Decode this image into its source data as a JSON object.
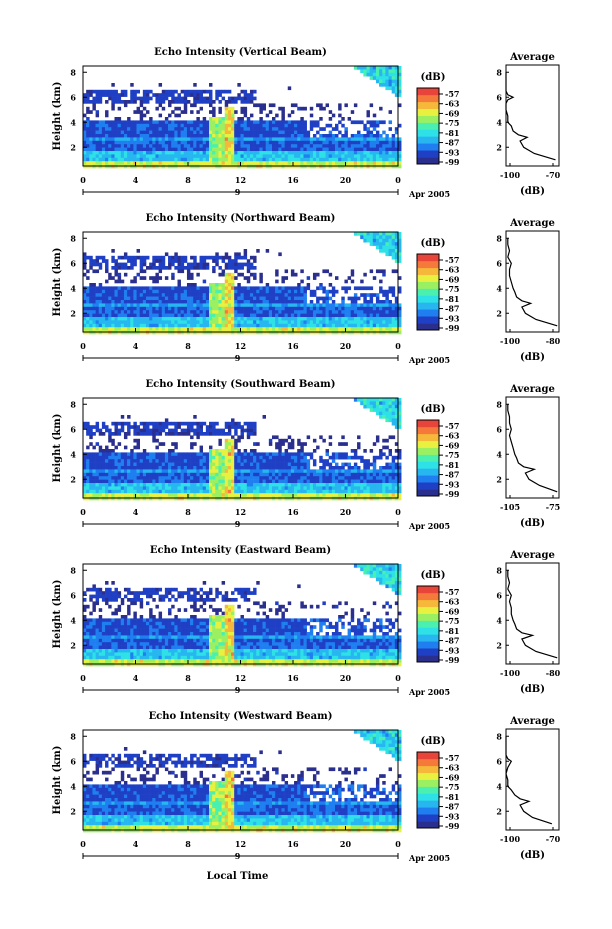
{
  "figure": {
    "x_axis_title": "Local Time",
    "date_label": "Apr 2005",
    "colorbar_unit": "(dB)",
    "average_title": "Average",
    "average_xlabel": "(dB)"
  },
  "colors": {
    "colormap": [
      "#2a2f8e",
      "#1f3fc4",
      "#1f7ff0",
      "#27b6f0",
      "#2ee1e6",
      "#49f0b0",
      "#9af061",
      "#e8f040",
      "#f5b83a",
      "#f5793a",
      "#e8453a"
    ],
    "axis": "#000000",
    "background": "#ffffff"
  },
  "chart_data": [
    {
      "type": "heatmap",
      "title": "Echo Intensity (Vertical Beam)",
      "xlabel": "Local Time",
      "ylabel": "Height (km)",
      "x_tick_labels": [
        "0",
        "4",
        "8",
        "12",
        "16",
        "20",
        "0"
      ],
      "x_day_label": "9",
      "x_range_hours": [
        0,
        24
      ],
      "y_tick_labels": [
        "2",
        "4",
        "6",
        "8"
      ],
      "ylim_km": [
        0.5,
        8.5
      ],
      "colorbar": {
        "unit": "(dB)",
        "tick_labels": [
          "-57",
          "-63",
          "-69",
          "-75",
          "-81",
          "-87",
          "-93",
          "-99"
        ],
        "range": [
          -99,
          -57
        ]
      },
      "average_profile": {
        "title": "Average",
        "xlabel": "(dB)",
        "xlim": [
          -100,
          -70
        ],
        "x_tick_labels": [
          "-100",
          "-70"
        ],
        "y_tick_labels": [
          "2",
          "4",
          "6",
          "8"
        ],
        "height_km": [
          1.0,
          1.5,
          2.0,
          2.5,
          2.8,
          3.0,
          3.3,
          3.7,
          4.0,
          4.5,
          5.0,
          5.5,
          5.8,
          6.0,
          6.2,
          6.5,
          7.0,
          7.5,
          8.0
        ],
        "value_db": [
          -72,
          -84,
          -90,
          -92,
          -88,
          -93,
          -96,
          -97,
          -99,
          -99,
          -100,
          -100,
          -99,
          -96,
          -99,
          -100,
          -100,
          -100,
          -100
        ]
      }
    },
    {
      "type": "heatmap",
      "title": "Echo Intensity (Northward Beam)",
      "xlabel": "Local Time",
      "ylabel": "Height (km)",
      "x_tick_labels": [
        "0",
        "4",
        "8",
        "12",
        "16",
        "20",
        "0"
      ],
      "x_day_label": "9",
      "x_range_hours": [
        0,
        24
      ],
      "y_tick_labels": [
        "2",
        "4",
        "6",
        "8"
      ],
      "ylim_km": [
        0.5,
        8.5
      ],
      "colorbar": {
        "unit": "(dB)",
        "tick_labels": [
          "-57",
          "-63",
          "-69",
          "-75",
          "-81",
          "-87",
          "-93",
          "-99"
        ],
        "range": [
          -99,
          -57
        ]
      },
      "average_profile": {
        "title": "Average",
        "xlabel": "(dB)",
        "xlim": [
          -105,
          -75
        ],
        "x_tick_labels": [
          "-100",
          "-80"
        ],
        "y_tick_labels": [
          "2",
          "4",
          "6",
          "8"
        ],
        "height_km": [
          1.0,
          1.5,
          2.0,
          2.5,
          2.8,
          3.0,
          3.3,
          3.7,
          4.0,
          4.5,
          5.0,
          5.5,
          6.0,
          6.5,
          7.0,
          7.5,
          8.0
        ],
        "value_db": [
          -76,
          -88,
          -94,
          -96,
          -91,
          -96,
          -99,
          -100,
          -101,
          -102,
          -103,
          -103,
          -102,
          -104,
          -103,
          -104,
          -104
        ]
      }
    },
    {
      "type": "heatmap",
      "title": "Echo Intensity (Southward Beam)",
      "xlabel": "Local Time",
      "ylabel": "Height (km)",
      "x_tick_labels": [
        "0",
        "4",
        "8",
        "12",
        "16",
        "20",
        "0"
      ],
      "x_day_label": "9",
      "x_range_hours": [
        0,
        24
      ],
      "y_tick_labels": [
        "2",
        "4",
        "6",
        "8"
      ],
      "ylim_km": [
        0.5,
        8.5
      ],
      "colorbar": {
        "unit": "(dB)",
        "tick_labels": [
          "-57",
          "-63",
          "-69",
          "-75",
          "-81",
          "-87",
          "-93",
          "-99"
        ],
        "range": [
          -99,
          -57
        ]
      },
      "average_profile": {
        "title": "Average",
        "xlabel": "(dB)",
        "xlim": [
          -105,
          -75
        ],
        "x_tick_labels": [
          "-105",
          "-75"
        ],
        "y_tick_labels": [
          "2",
          "4",
          "6",
          "8"
        ],
        "height_km": [
          1.0,
          1.5,
          2.0,
          2.5,
          2.8,
          3.0,
          3.3,
          3.7,
          4.0,
          4.5,
          5.0,
          5.5,
          6.0,
          6.5,
          7.0,
          7.5,
          8.0
        ],
        "value_db": [
          -76,
          -86,
          -92,
          -94,
          -89,
          -95,
          -98,
          -99,
          -100,
          -101,
          -102,
          -103,
          -102,
          -103,
          -103,
          -104,
          -104
        ]
      }
    },
    {
      "type": "heatmap",
      "title": "Echo Intensity (Eastward Beam)",
      "xlabel": "Local Time",
      "ylabel": "Height (km)",
      "x_tick_labels": [
        "0",
        "4",
        "8",
        "12",
        "16",
        "20",
        "0"
      ],
      "x_day_label": "9",
      "x_range_hours": [
        0,
        24
      ],
      "y_tick_labels": [
        "2",
        "4",
        "6",
        "8"
      ],
      "ylim_km": [
        0.5,
        8.5
      ],
      "colorbar": {
        "unit": "(dB)",
        "tick_labels": [
          "-57",
          "-63",
          "-69",
          "-75",
          "-81",
          "-87",
          "-93",
          "-99"
        ],
        "range": [
          -99,
          -57
        ]
      },
      "average_profile": {
        "title": "Average",
        "xlabel": "(dB)",
        "xlim": [
          -105,
          -75
        ],
        "x_tick_labels": [
          "-100",
          "-80"
        ],
        "y_tick_labels": [
          "2",
          "4",
          "6",
          "8"
        ],
        "height_km": [
          1.0,
          1.5,
          2.0,
          2.5,
          2.8,
          3.0,
          3.3,
          3.7,
          4.0,
          4.5,
          5.0,
          5.5,
          6.0,
          6.5,
          7.0,
          7.5,
          8.0
        ],
        "value_db": [
          -76,
          -88,
          -94,
          -96,
          -90,
          -96,
          -99,
          -100,
          -101,
          -102,
          -102,
          -103,
          -102,
          -104,
          -103,
          -104,
          -104
        ]
      }
    },
    {
      "type": "heatmap",
      "title": "Echo Intensity (Westward Beam)",
      "xlabel": "Local Time",
      "ylabel": "Height (km)",
      "x_tick_labels": [
        "0",
        "4",
        "8",
        "12",
        "16",
        "20",
        "0"
      ],
      "x_day_label": "9",
      "x_range_hours": [
        0,
        24
      ],
      "y_tick_labels": [
        "2",
        "4",
        "6",
        "8"
      ],
      "ylim_km": [
        0.5,
        8.5
      ],
      "colorbar": {
        "unit": "(dB)",
        "tick_labels": [
          "-57",
          "-63",
          "-69",
          "-75",
          "-81",
          "-87",
          "-93",
          "-99"
        ],
        "range": [
          -99,
          -57
        ]
      },
      "average_profile": {
        "title": "Average",
        "xlabel": "(dB)",
        "xlim": [
          -100,
          -70
        ],
        "x_tick_labels": [
          "-100",
          "-70"
        ],
        "y_tick_labels": [
          "2",
          "4",
          "6",
          "8"
        ],
        "height_km": [
          1.0,
          1.5,
          2.0,
          2.5,
          2.8,
          3.0,
          3.3,
          3.7,
          4.0,
          4.5,
          5.0,
          5.5,
          6.0,
          6.2,
          6.5,
          7.0,
          7.5,
          8.0
        ],
        "value_db": [
          -74,
          -85,
          -90,
          -92,
          -87,
          -92,
          -95,
          -97,
          -99,
          -99,
          -100,
          -99,
          -97,
          -99,
          -100,
          -100,
          -100,
          -100
        ]
      }
    }
  ]
}
